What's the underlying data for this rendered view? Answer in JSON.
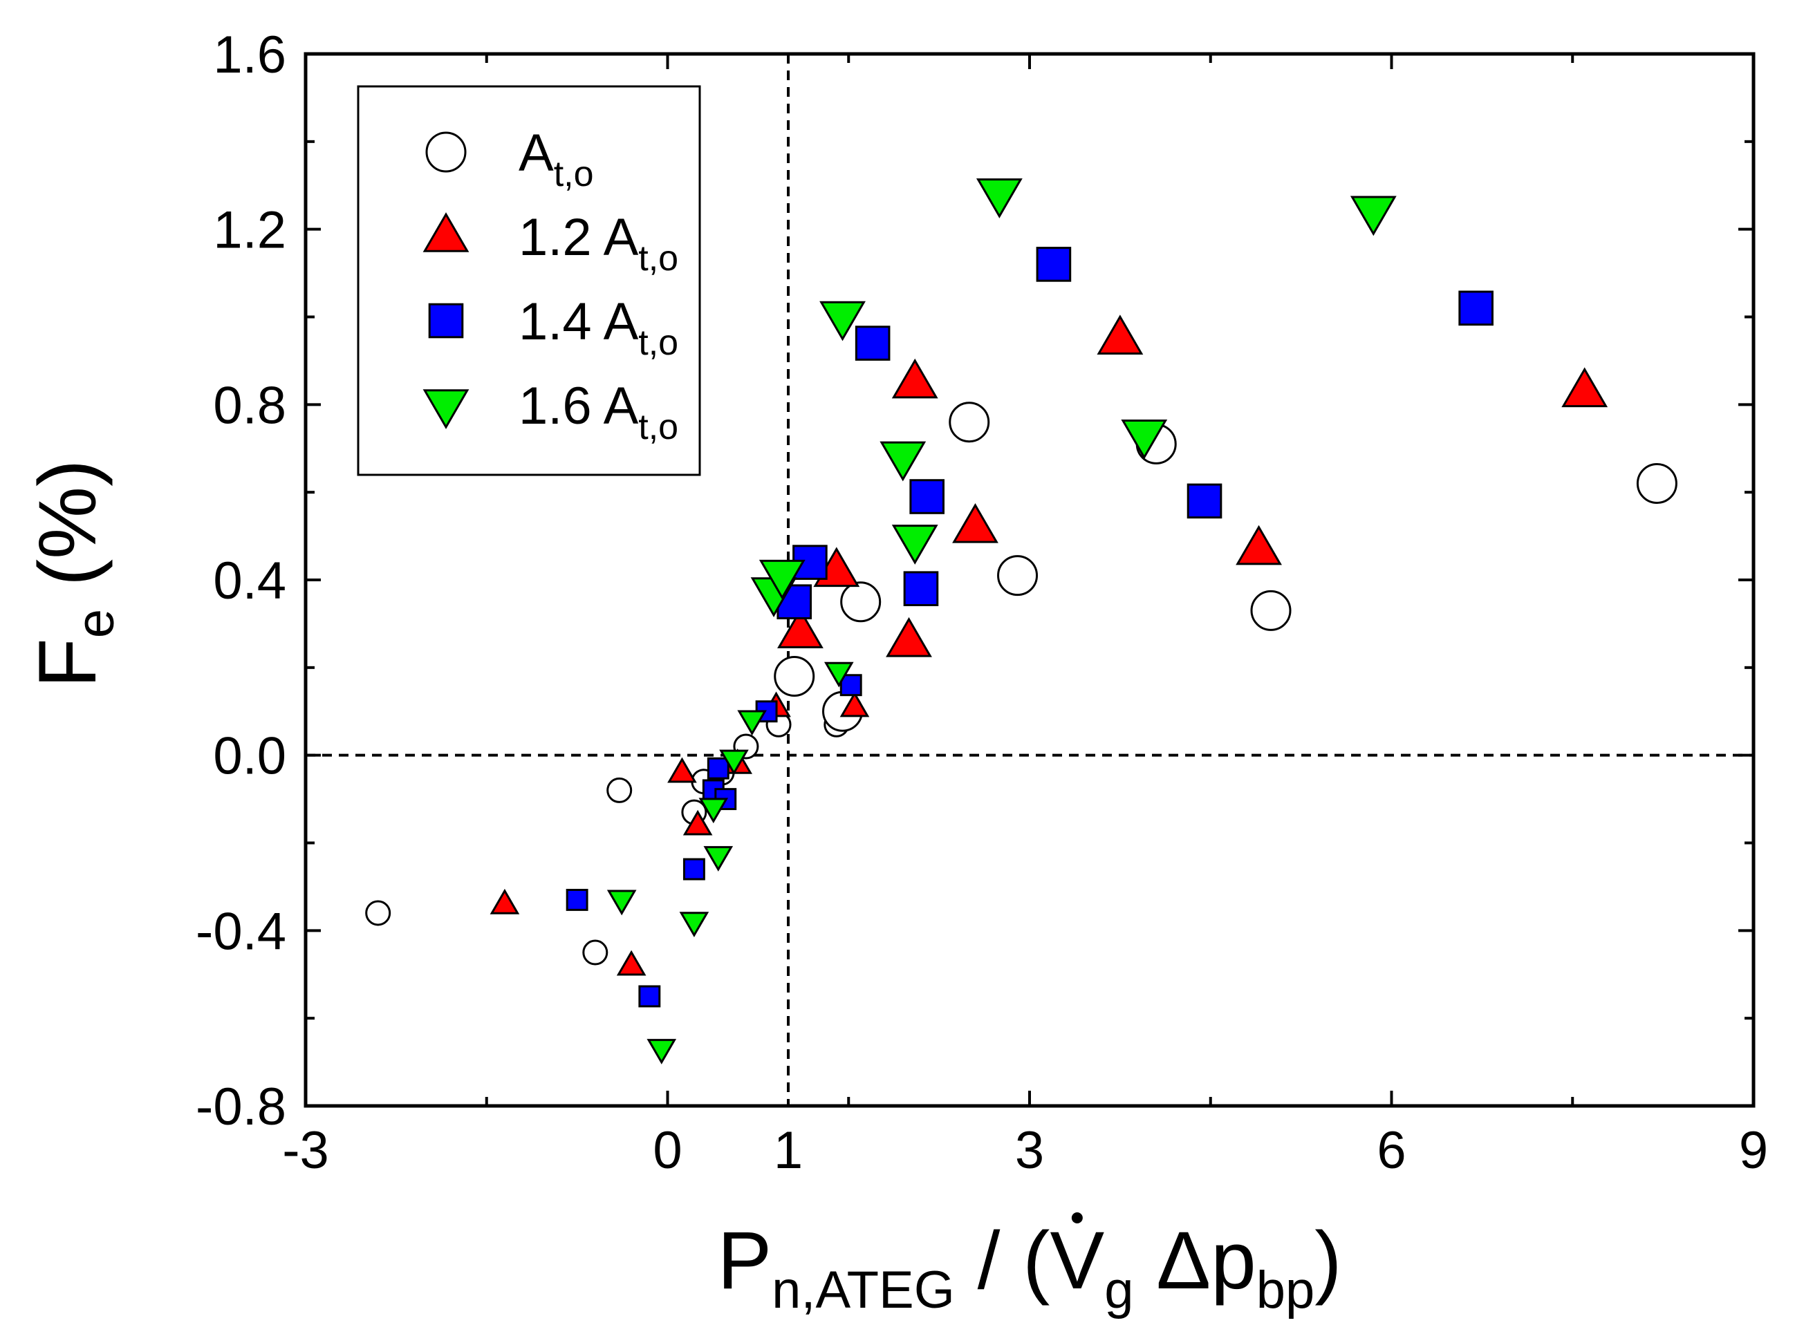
{
  "chart_data": {
    "type": "scatter",
    "title": "",
    "xlabel": "P n,ATEG / (V̇ g Δp bp)",
    "ylabel": "F e (%)",
    "xlabel_parts": {
      "main": "P",
      "sub": "n,ATEG",
      "mid": " / (",
      "vdot": "V",
      "vdot_sub": "g",
      "delta": " Δp",
      "delta_sub": "bp",
      "end": ")"
    },
    "ylabel_parts": {
      "main": "F",
      "sub": "e",
      "rest": " (%)"
    },
    "xlim": [
      -3,
      9
    ],
    "ylim": [
      -0.8,
      1.6
    ],
    "xticks": [
      -3,
      0,
      1,
      3,
      6,
      9
    ],
    "xtick_labels": [
      "-3",
      "0",
      "1",
      "3",
      "6",
      "9"
    ],
    "yticks": [
      -0.8,
      -0.4,
      0.0,
      0.4,
      0.8,
      1.2,
      1.6
    ],
    "ytick_labels": [
      "-0.8",
      "-0.4",
      "0.0",
      "0.4",
      "0.8",
      "1.2",
      "1.6"
    ],
    "reference_lines": {
      "x": 1,
      "y": 0
    },
    "legend_position": "top-left",
    "series": [
      {
        "name": "A t,o",
        "label_main": "A",
        "label_sub": "t,o",
        "marker": "circle",
        "color": "#ffffff",
        "points": [
          {
            "x": -2.4,
            "y": -0.36,
            "s": 0
          },
          {
            "x": -0.4,
            "y": -0.08,
            "s": 0
          },
          {
            "x": -0.6,
            "y": -0.45,
            "s": 0
          },
          {
            "x": 0.22,
            "y": -0.13,
            "s": 0
          },
          {
            "x": 0.3,
            "y": -0.06,
            "s": 0
          },
          {
            "x": 0.45,
            "y": -0.04,
            "s": 0
          },
          {
            "x": 0.65,
            "y": 0.02,
            "s": 0
          },
          {
            "x": 0.92,
            "y": 0.07,
            "s": 0
          },
          {
            "x": 1.05,
            "y": 0.18,
            "s": 1
          },
          {
            "x": 1.4,
            "y": 0.07,
            "s": 0
          },
          {
            "x": 1.45,
            "y": 0.1,
            "s": 1
          },
          {
            "x": 1.6,
            "y": 0.35,
            "s": 1
          },
          {
            "x": 2.5,
            "y": 0.76,
            "s": 1
          },
          {
            "x": 2.9,
            "y": 0.41,
            "s": 1
          },
          {
            "x": 4.05,
            "y": 0.71,
            "s": 1
          },
          {
            "x": 5.0,
            "y": 0.33,
            "s": 1
          },
          {
            "x": 8.2,
            "y": 0.62,
            "s": 1
          }
        ]
      },
      {
        "name": "1.2 A t,o",
        "label_main": "1.2 A",
        "label_sub": "t,o",
        "marker": "triangle-up",
        "color": "#ff0000",
        "points": [
          {
            "x": -1.35,
            "y": -0.34,
            "s": 0
          },
          {
            "x": -0.3,
            "y": -0.48,
            "s": 0
          },
          {
            "x": 0.12,
            "y": -0.04,
            "s": 0
          },
          {
            "x": 0.25,
            "y": -0.16,
            "s": 0
          },
          {
            "x": 0.58,
            "y": -0.02,
            "s": 0
          },
          {
            "x": 0.9,
            "y": 0.11,
            "s": 0
          },
          {
            "x": 1.1,
            "y": 0.28,
            "s": 1
          },
          {
            "x": 1.4,
            "y": 0.42,
            "s": 1
          },
          {
            "x": 1.55,
            "y": 0.11,
            "s": 0
          },
          {
            "x": 2.0,
            "y": 0.26,
            "s": 1
          },
          {
            "x": 2.05,
            "y": 0.85,
            "s": 1
          },
          {
            "x": 2.55,
            "y": 0.52,
            "s": 1
          },
          {
            "x": 3.75,
            "y": 0.95,
            "s": 1
          },
          {
            "x": 4.9,
            "y": 0.47,
            "s": 1
          },
          {
            "x": 7.6,
            "y": 0.83,
            "s": 1
          }
        ]
      },
      {
        "name": "1.4 A t,o",
        "label_main": "1.4 A",
        "label_sub": "t,o",
        "marker": "square",
        "color": "#0000ff",
        "points": [
          {
            "x": -0.75,
            "y": -0.33,
            "s": 0
          },
          {
            "x": -0.15,
            "y": -0.55,
            "s": 0
          },
          {
            "x": 0.22,
            "y": -0.26,
            "s": 0
          },
          {
            "x": 0.38,
            "y": -0.08,
            "s": 0
          },
          {
            "x": 0.42,
            "y": -0.03,
            "s": 0
          },
          {
            "x": 0.48,
            "y": -0.1,
            "s": 0
          },
          {
            "x": 0.82,
            "y": 0.1,
            "s": 0
          },
          {
            "x": 1.05,
            "y": 0.35,
            "s": 1
          },
          {
            "x": 1.18,
            "y": 0.44,
            "s": 1
          },
          {
            "x": 1.52,
            "y": 0.16,
            "s": 0
          },
          {
            "x": 1.7,
            "y": 0.94,
            "s": 1
          },
          {
            "x": 2.1,
            "y": 0.38,
            "s": 1
          },
          {
            "x": 2.15,
            "y": 0.59,
            "s": 1
          },
          {
            "x": 3.2,
            "y": 1.12,
            "s": 1
          },
          {
            "x": 4.45,
            "y": 0.58,
            "s": 1
          },
          {
            "x": 6.7,
            "y": 1.02,
            "s": 1
          }
        ]
      },
      {
        "name": "1.6 A t,o",
        "label_main": "1.6 A",
        "label_sub": "t,o",
        "marker": "triangle-down",
        "color": "#00ee00",
        "points": [
          {
            "x": -0.38,
            "y": -0.33,
            "s": 0
          },
          {
            "x": -0.05,
            "y": -0.67,
            "s": 0
          },
          {
            "x": 0.22,
            "y": -0.38,
            "s": 0
          },
          {
            "x": 0.38,
            "y": -0.12,
            "s": 0
          },
          {
            "x": 0.42,
            "y": -0.23,
            "s": 0
          },
          {
            "x": 0.55,
            "y": -0.01,
            "s": 0
          },
          {
            "x": 0.7,
            "y": 0.08,
            "s": 0
          },
          {
            "x": 0.88,
            "y": 0.37,
            "s": 1
          },
          {
            "x": 0.95,
            "y": 0.41,
            "s": 1
          },
          {
            "x": 1.42,
            "y": 0.19,
            "s": 0
          },
          {
            "x": 1.45,
            "y": 1.0,
            "s": 1
          },
          {
            "x": 1.95,
            "y": 0.68,
            "s": 1
          },
          {
            "x": 2.05,
            "y": 0.49,
            "s": 1
          },
          {
            "x": 2.75,
            "y": 1.28,
            "s": 1
          },
          {
            "x": 3.95,
            "y": 0.73,
            "s": 1
          },
          {
            "x": 5.85,
            "y": 1.24,
            "s": 1
          }
        ]
      }
    ]
  }
}
